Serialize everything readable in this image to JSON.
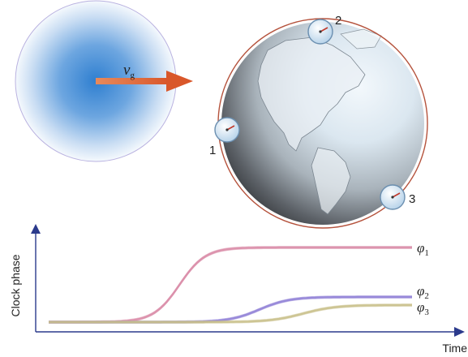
{
  "diagram": {
    "velocity_symbol": "v",
    "velocity_subscript": "g",
    "clocks": [
      {
        "label": "1"
      },
      {
        "label": "2"
      },
      {
        "label": "3"
      }
    ],
    "colors": {
      "dm_cloud_center": "#2f7fd0",
      "dm_cloud_edge": "#ffffff",
      "arrow": "#e0673a",
      "orbit": "#b5533d",
      "axis": "#2b3a8c"
    }
  },
  "chart_data": {
    "type": "line",
    "xlabel": "Time",
    "ylabel": "Clock phase",
    "series": [
      {
        "name": "φ1",
        "label_main": "φ",
        "label_sub": "1",
        "color": "#d98aa6",
        "base": 0.03,
        "top": 0.95,
        "midpoint": 0.36,
        "steepness": 28
      },
      {
        "name": "φ2",
        "label_main": "φ",
        "label_sub": "2",
        "color": "#8f7fd6",
        "base": 0.03,
        "top": 0.34,
        "midpoint": 0.58,
        "steepness": 24
      },
      {
        "name": "φ3",
        "label_main": "φ",
        "label_sub": "3",
        "color": "#c9c08a",
        "base": 0.03,
        "top": 0.24,
        "midpoint": 0.7,
        "steepness": 22
      }
    ]
  }
}
